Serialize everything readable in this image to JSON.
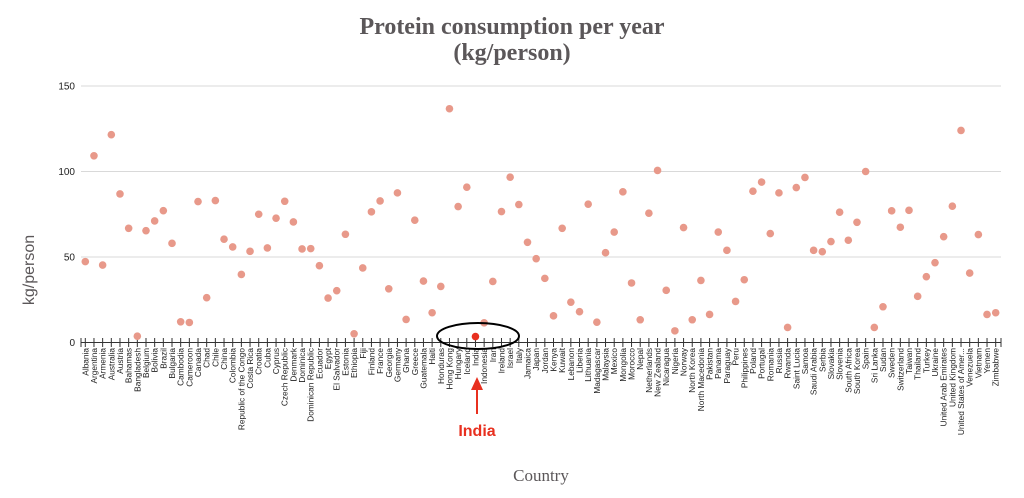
{
  "chart_data": {
    "type": "scatter",
    "title": "Protein consumption per year (kg/person)",
    "title_lines": [
      "Protein consumption per year",
      "(kg/person)"
    ],
    "xlabel": "Country",
    "ylabel": "kg/person",
    "ylim": [
      0,
      150
    ],
    "yticks": [
      0,
      50,
      100,
      150
    ],
    "grid": true,
    "point_color": "#e8998a",
    "highlight_color": "#e8301f",
    "annotation": {
      "label": "India",
      "target": "India",
      "marker": "ellipse-and-arrow"
    },
    "categories": [
      "Albania",
      "Argentina",
      "Armenia",
      "Australia",
      "Austria",
      "Bahamas",
      "Bangladesh",
      "Belgium",
      "Bolivia",
      "Brazil",
      "Bulgaria",
      "Cambodia",
      "Cameroon",
      "Canada",
      "Chad",
      "Chile",
      "China",
      "Colombia",
      "Republic of the Congo",
      "Costa Rica",
      "Croatia",
      "Cuba",
      "Cyprus",
      "Czech Republic",
      "Denmark",
      "Dominica",
      "Dominican Republic",
      "Ecuador",
      "Egypt",
      "El Salvador",
      "Estonia",
      "Ethiopia",
      "Fiji",
      "Finland",
      "France",
      "Georgia",
      "Germany",
      "Ghana",
      "Greece",
      "Guatemala",
      "Haiti",
      "Honduras",
      "Hong Kong",
      "Hungary",
      "Iceland",
      "India",
      "Indonesia",
      "Iran",
      "Ireland",
      "Israel",
      "Italy",
      "Jamaica",
      "Japan",
      "Jordan",
      "Kenya",
      "Kuwait",
      "Lebanon",
      "Liberia",
      "Lithuania",
      "Madagascar",
      "Malaysia",
      "Mexico",
      "Mongolia",
      "Morocco",
      "Nepal",
      "Netherlands",
      "New Zealand",
      "Nicaragua",
      "Nigeria",
      "Norway",
      "North Korea",
      "North Macedonia",
      "Pakistan",
      "Panama",
      "Paraguay",
      "Peru",
      "Philippines",
      "Poland",
      "Portugal",
      "Romania",
      "Russia",
      "Rwanda",
      "Saint Lucia",
      "Samoa",
      "Saudi Arabia",
      "Serbia",
      "Slovakia",
      "Slovenia",
      "South Africa",
      "South Korea",
      "Spain",
      "Sri Lanka",
      "Sudan",
      "Sweden",
      "Switzerland",
      "Taiwan",
      "Thailand",
      "Turkey",
      "Ukraine",
      "United Arab Emirates",
      "United Kingdom",
      "United States of Amer...",
      "Venezuela",
      "Vietnam",
      "Yemen",
      "Zimbabwe"
    ],
    "values": [
      47.3,
      109.2,
      45.3,
      121.5,
      86.9,
      66.8,
      3.7,
      65.4,
      71.1,
      77.1,
      58.0,
      12.1,
      11.7,
      82.4,
      26.2,
      83.0,
      60.4,
      55.9,
      39.8,
      53.3,
      75.0,
      55.3,
      72.7,
      82.6,
      70.5,
      54.7,
      54.9,
      44.9,
      26.0,
      30.3,
      63.3,
      5.1,
      43.6,
      76.4,
      82.8,
      31.4,
      87.5,
      13.5,
      71.5,
      35.9,
      17.4,
      32.8,
      136.7,
      79.5,
      90.8,
      3.5,
      11.5,
      35.7,
      76.6,
      96.7,
      80.7,
      58.6,
      49.0,
      37.5,
      15.6,
      66.8,
      23.6,
      18.0,
      80.9,
      11.9,
      52.5,
      64.6,
      88.1,
      34.8,
      13.3,
      75.6,
      100.6,
      30.5,
      6.8,
      67.2,
      13.3,
      36.3,
      16.4,
      64.6,
      53.9,
      24.0,
      36.7,
      88.5,
      93.8,
      63.7,
      87.5,
      8.8,
      90.6,
      96.5,
      53.9,
      53.1,
      59.0,
      76.2,
      59.8,
      70.3,
      100.0,
      8.8,
      20.9,
      77.0,
      67.4,
      77.3,
      27.0,
      38.5,
      46.7,
      61.9,
      79.7,
      124.0,
      40.6,
      63.1,
      16.4,
      17.4
    ]
  }
}
